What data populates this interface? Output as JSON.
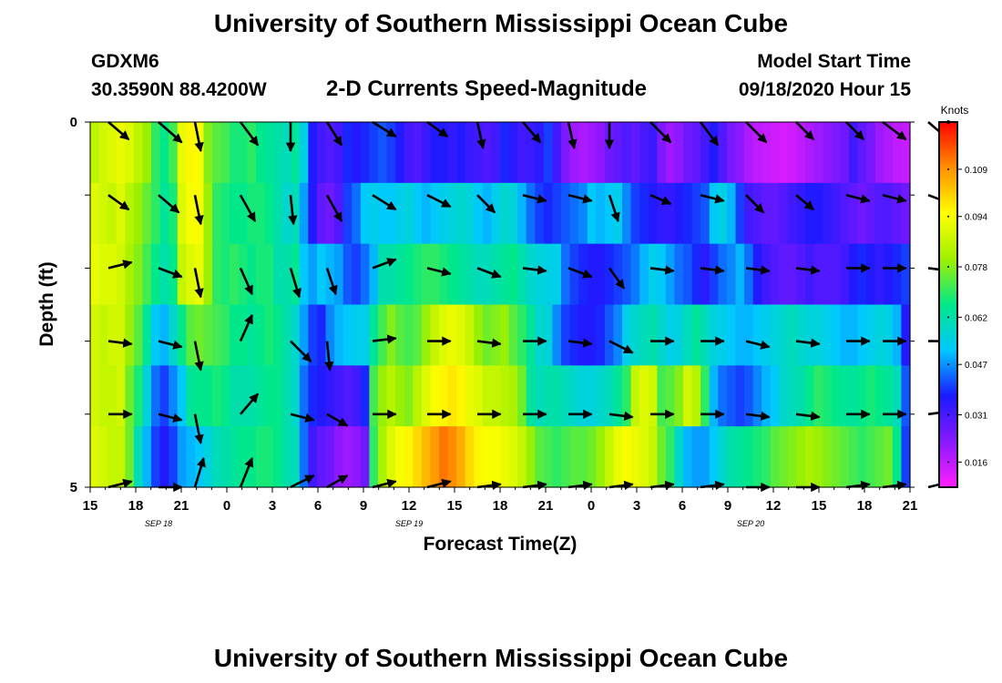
{
  "header": {
    "title": "University of Southern Mississippi Ocean Cube",
    "station_id": "GDXM6",
    "coordinates": "30.3590N 88.4200W",
    "subtitle": "2-D Currents Speed-Magnitude",
    "start_time_label": "Model Start Time",
    "start_time_value": "09/18/2020 Hour 15"
  },
  "footer": {
    "title": "University of Southern Mississippi Ocean Cube"
  },
  "chart_data": {
    "type": "heatmap",
    "title": "2-D Currents Speed-Magnitude",
    "xlabel": "Forecast Time(Z)",
    "ylabel": "Depth (ft)",
    "x_tick_labels": [
      "15",
      "18",
      "21",
      "0",
      "3",
      "6",
      "9",
      "12",
      "15",
      "18",
      "21",
      "0",
      "3",
      "6",
      "9",
      "12",
      "15",
      "18",
      "21"
    ],
    "date_labels": [
      {
        "text": "SEP 18",
        "at_tick": 1.5
      },
      {
        "text": "SEP 19",
        "at_tick": 7
      },
      {
        "text": "SEP 20",
        "at_tick": 14.5
      }
    ],
    "y_tick_labels": [
      {
        "text": "0",
        "level": 0
      },
      {
        "text": "5",
        "level": 5
      }
    ],
    "depth_levels": 6,
    "x_steps_per_tick": 3,
    "speed_units": "knots",
    "colorbar": {
      "label": "Knots",
      "ticks": [
        "0.109",
        "0.094",
        "0.078",
        "0.062",
        "0.047",
        "0.031",
        "0.016"
      ],
      "tick_values": [
        0.109,
        0.094,
        0.078,
        0.062,
        0.047,
        0.031,
        0.016
      ],
      "range": [
        0.008,
        0.124
      ],
      "colors": [
        "#ff1fff",
        "#8a18ff",
        "#1a1aff",
        "#00c8ff",
        "#00e88a",
        "#a0f000",
        "#ffff00",
        "#ff9000",
        "#ff0000"
      ]
    },
    "speed_rows": [
      [
        0.085,
        0.088,
        0.09,
        0.092,
        0.09,
        0.085,
        0.08,
        0.07,
        0.066,
        0.072,
        0.092,
        0.096,
        0.094,
        0.078,
        0.074,
        0.072,
        0.068,
        0.068,
        0.07,
        0.066,
        0.064,
        0.062,
        0.06,
        0.064,
        0.055,
        0.036,
        0.032,
        0.03,
        0.032,
        0.038,
        0.036,
        0.038,
        0.04,
        0.042,
        0.04,
        0.036,
        0.032,
        0.03,
        0.033,
        0.036,
        0.036,
        0.034,
        0.036,
        0.033,
        0.032,
        0.03,
        0.032,
        0.038,
        0.035,
        0.032,
        0.033,
        0.035,
        0.04,
        0.032,
        0.024,
        0.02,
        0.018,
        0.02,
        0.022,
        0.026,
        0.028,
        0.03,
        0.028,
        0.031,
        0.033,
        0.024,
        0.02,
        0.022,
        0.026,
        0.028,
        0.032,
        0.036,
        0.03,
        0.025,
        0.022,
        0.018,
        0.016,
        0.015,
        0.014,
        0.013,
        0.014,
        0.016,
        0.018,
        0.02,
        0.022,
        0.024,
        0.026,
        0.032,
        0.028,
        0.025,
        0.02,
        0.018,
        0.016,
        0.015
      ],
      [
        0.09,
        0.088,
        0.086,
        0.09,
        0.084,
        0.08,
        0.075,
        0.07,
        0.064,
        0.068,
        0.09,
        0.094,
        0.094,
        0.08,
        0.07,
        0.068,
        0.066,
        0.066,
        0.068,
        0.068,
        0.066,
        0.062,
        0.058,
        0.06,
        0.048,
        0.036,
        0.028,
        0.026,
        0.03,
        0.04,
        0.044,
        0.052,
        0.054,
        0.052,
        0.052,
        0.054,
        0.056,
        0.052,
        0.05,
        0.052,
        0.054,
        0.056,
        0.058,
        0.056,
        0.052,
        0.05,
        0.054,
        0.058,
        0.056,
        0.05,
        0.044,
        0.04,
        0.038,
        0.04,
        0.042,
        0.044,
        0.046,
        0.052,
        0.05,
        0.052,
        0.054,
        0.046,
        0.04,
        0.038,
        0.036,
        0.034,
        0.034,
        0.036,
        0.038,
        0.04,
        0.042,
        0.052,
        0.055,
        0.05,
        0.04,
        0.032,
        0.03,
        0.028,
        0.028,
        0.03,
        0.032,
        0.034,
        0.036,
        0.036,
        0.034,
        0.032,
        0.03,
        0.028,
        0.026,
        0.028,
        0.03,
        0.03,
        0.028,
        0.026
      ],
      [
        0.092,
        0.09,
        0.09,
        0.088,
        0.082,
        0.078,
        0.072,
        0.066,
        0.062,
        0.066,
        0.086,
        0.09,
        0.092,
        0.08,
        0.07,
        0.068,
        0.07,
        0.068,
        0.066,
        0.068,
        0.068,
        0.062,
        0.062,
        0.065,
        0.052,
        0.048,
        0.052,
        0.05,
        0.048,
        0.042,
        0.04,
        0.044,
        0.05,
        0.062,
        0.062,
        0.064,
        0.066,
        0.068,
        0.07,
        0.07,
        0.068,
        0.066,
        0.064,
        0.062,
        0.06,
        0.06,
        0.062,
        0.064,
        0.066,
        0.062,
        0.058,
        0.056,
        0.055,
        0.054,
        0.044,
        0.04,
        0.038,
        0.036,
        0.036,
        0.038,
        0.04,
        0.042,
        0.045,
        0.05,
        0.054,
        0.052,
        0.048,
        0.044,
        0.042,
        0.038,
        0.035,
        0.04,
        0.044,
        0.046,
        0.05,
        0.044,
        0.036,
        0.032,
        0.03,
        0.028,
        0.028,
        0.03,
        0.032,
        0.03,
        0.03,
        0.03,
        0.032,
        0.036,
        0.038,
        0.036,
        0.034,
        0.036,
        0.038,
        0.04
      ],
      [
        0.088,
        0.086,
        0.088,
        0.088,
        0.08,
        0.074,
        0.064,
        0.052,
        0.05,
        0.058,
        0.066,
        0.074,
        0.076,
        0.074,
        0.072,
        0.07,
        0.066,
        0.066,
        0.064,
        0.066,
        0.068,
        0.066,
        0.062,
        0.058,
        0.048,
        0.04,
        0.038,
        0.046,
        0.05,
        0.052,
        0.054,
        0.054,
        0.064,
        0.072,
        0.078,
        0.074,
        0.072,
        0.074,
        0.08,
        0.086,
        0.09,
        0.092,
        0.09,
        0.086,
        0.08,
        0.076,
        0.078,
        0.08,
        0.074,
        0.07,
        0.064,
        0.058,
        0.056,
        0.046,
        0.04,
        0.038,
        0.036,
        0.036,
        0.038,
        0.042,
        0.046,
        0.054,
        0.058,
        0.06,
        0.062,
        0.058,
        0.054,
        0.056,
        0.06,
        0.064,
        0.06,
        0.056,
        0.054,
        0.052,
        0.05,
        0.05,
        0.052,
        0.054,
        0.056,
        0.058,
        0.06,
        0.058,
        0.056,
        0.056,
        0.054,
        0.052,
        0.05,
        0.05,
        0.052,
        0.054,
        0.056,
        0.055,
        0.05,
        0.036
      ],
      [
        0.088,
        0.086,
        0.086,
        0.088,
        0.076,
        0.068,
        0.056,
        0.044,
        0.04,
        0.046,
        0.052,
        0.064,
        0.066,
        0.066,
        0.068,
        0.066,
        0.062,
        0.062,
        0.062,
        0.064,
        0.066,
        0.066,
        0.062,
        0.058,
        0.044,
        0.038,
        0.036,
        0.034,
        0.032,
        0.03,
        0.032,
        0.038,
        0.072,
        0.08,
        0.084,
        0.08,
        0.078,
        0.084,
        0.09,
        0.094,
        0.096,
        0.098,
        0.096,
        0.092,
        0.09,
        0.086,
        0.086,
        0.084,
        0.082,
        0.076,
        0.064,
        0.06,
        0.062,
        0.062,
        0.06,
        0.058,
        0.056,
        0.056,
        0.058,
        0.06,
        0.064,
        0.07,
        0.086,
        0.09,
        0.088,
        0.072,
        0.074,
        0.078,
        0.088,
        0.084,
        0.07,
        0.05,
        0.044,
        0.042,
        0.04,
        0.042,
        0.046,
        0.05,
        0.052,
        0.058,
        0.06,
        0.062,
        0.066,
        0.07,
        0.068,
        0.066,
        0.064,
        0.064,
        0.066,
        0.068,
        0.066,
        0.064,
        0.06,
        0.042
      ],
      [
        0.09,
        0.088,
        0.086,
        0.086,
        0.076,
        0.06,
        0.05,
        0.04,
        0.036,
        0.04,
        0.048,
        0.05,
        0.052,
        0.056,
        0.06,
        0.062,
        0.064,
        0.066,
        0.066,
        0.068,
        0.068,
        0.066,
        0.062,
        0.06,
        0.044,
        0.032,
        0.028,
        0.026,
        0.022,
        0.02,
        0.022,
        0.026,
        0.07,
        0.082,
        0.09,
        0.094,
        0.096,
        0.1,
        0.104,
        0.108,
        0.112,
        0.11,
        0.106,
        0.1,
        0.096,
        0.094,
        0.094,
        0.092,
        0.09,
        0.086,
        0.08,
        0.074,
        0.072,
        0.07,
        0.072,
        0.074,
        0.074,
        0.076,
        0.08,
        0.086,
        0.092,
        0.094,
        0.092,
        0.09,
        0.086,
        0.076,
        0.07,
        0.058,
        0.05,
        0.048,
        0.048,
        0.052,
        0.058,
        0.062,
        0.064,
        0.066,
        0.068,
        0.07,
        0.074,
        0.076,
        0.078,
        0.08,
        0.082,
        0.08,
        0.078,
        0.076,
        0.074,
        0.072,
        0.07,
        0.072,
        0.074,
        0.076,
        0.066,
        0.04
      ]
    ],
    "vector_columns": [
      0.4,
      1.5,
      2.3,
      3.3,
      4.4,
      5.2,
      6.2,
      7.4,
      8.5,
      9.5,
      10.5,
      11.4,
      12.3,
      13.4,
      14.4,
      15.5,
      16.6,
      17.4,
      18.4
    ],
    "vectors": [
      [
        [
          0.07,
          -0.06
        ],
        [
          0.08,
          -0.07
        ],
        [
          0.02,
          -0.1
        ],
        [
          0.06,
          -0.08
        ],
        [
          0.0,
          -0.1
        ],
        [
          0.05,
          -0.08
        ],
        [
          0.08,
          -0.05
        ],
        [
          0.07,
          -0.05
        ],
        [
          0.02,
          -0.09
        ],
        [
          0.06,
          -0.07
        ],
        [
          0.02,
          -0.09
        ],
        [
          0.0,
          -0.09
        ],
        [
          0.07,
          -0.07
        ],
        [
          0.06,
          -0.08
        ],
        [
          0.07,
          -0.07
        ],
        [
          0.06,
          -0.06
        ],
        [
          0.06,
          -0.06
        ],
        [
          0.08,
          -0.06
        ],
        [
          0.07,
          -0.06
        ]
      ],
      [
        [
          0.07,
          -0.05
        ],
        [
          0.07,
          -0.06
        ],
        [
          0.02,
          -0.1
        ],
        [
          0.05,
          -0.09
        ],
        [
          0.01,
          -0.1
        ],
        [
          0.05,
          -0.09
        ],
        [
          0.08,
          -0.05
        ],
        [
          0.08,
          -0.04
        ],
        [
          0.06,
          -0.06
        ],
        [
          0.08,
          -0.02
        ],
        [
          0.08,
          -0.02
        ],
        [
          0.03,
          -0.09
        ],
        [
          0.07,
          -0.03
        ],
        [
          0.08,
          -0.02
        ],
        [
          0.06,
          -0.06
        ],
        [
          0.06,
          -0.05
        ],
        [
          0.08,
          -0.02
        ],
        [
          0.08,
          -0.02
        ],
        [
          0.08,
          -0.03
        ]
      ],
      [
        [
          0.08,
          0.02
        ],
        [
          0.08,
          -0.03
        ],
        [
          0.02,
          -0.1
        ],
        [
          0.04,
          -0.09
        ],
        [
          0.03,
          -0.1
        ],
        [
          0.03,
          -0.09
        ],
        [
          0.08,
          0.03
        ],
        [
          0.08,
          -0.02
        ],
        [
          0.08,
          -0.03
        ],
        [
          0.08,
          -0.01
        ],
        [
          0.08,
          -0.03
        ],
        [
          0.05,
          -0.07
        ],
        [
          0.08,
          -0.01
        ],
        [
          0.08,
          -0.01
        ],
        [
          0.08,
          -0.01
        ],
        [
          0.08,
          -0.01
        ],
        [
          0.08,
          0.0
        ],
        [
          0.08,
          0.0
        ],
        [
          0.08,
          -0.01
        ]
      ],
      [
        [
          0.08,
          -0.01
        ],
        [
          0.08,
          -0.02
        ],
        [
          0.02,
          -0.1
        ],
        [
          0.04,
          0.09
        ],
        [
          0.07,
          -0.07
        ],
        [
          0.01,
          -0.1
        ],
        [
          0.08,
          0.01
        ],
        [
          0.08,
          0.0
        ],
        [
          0.08,
          -0.01
        ],
        [
          0.08,
          0.0
        ],
        [
          0.08,
          -0.01
        ],
        [
          0.08,
          -0.04
        ],
        [
          0.08,
          0.0
        ],
        [
          0.08,
          0.0
        ],
        [
          0.08,
          -0.02
        ],
        [
          0.08,
          -0.01
        ],
        [
          0.08,
          0.0
        ],
        [
          0.08,
          0.0
        ],
        [
          0.08,
          0.0
        ]
      ],
      [
        [
          0.08,
          0.0
        ],
        [
          0.08,
          -0.02
        ],
        [
          0.02,
          -0.1
        ],
        [
          0.06,
          0.07
        ],
        [
          0.08,
          -0.02
        ],
        [
          0.07,
          -0.04
        ],
        [
          0.08,
          0.0
        ],
        [
          0.08,
          0.0
        ],
        [
          0.08,
          0.0
        ],
        [
          0.08,
          0.0
        ],
        [
          0.08,
          0.0
        ],
        [
          0.08,
          -0.01
        ],
        [
          0.08,
          0.0
        ],
        [
          0.08,
          0.0
        ],
        [
          0.08,
          -0.01
        ],
        [
          0.08,
          -0.01
        ],
        [
          0.08,
          0.0
        ],
        [
          0.08,
          0.0
        ],
        [
          0.08,
          0.01
        ]
      ],
      [
        [
          0.08,
          0.02
        ],
        [
          0.08,
          0.0
        ],
        [
          0.03,
          0.1
        ],
        [
          0.04,
          0.1
        ],
        [
          0.08,
          0.04
        ],
        [
          0.07,
          0.04
        ],
        [
          0.08,
          0.02
        ],
        [
          0.08,
          0.02
        ],
        [
          0.08,
          0.01
        ],
        [
          0.08,
          0.01
        ],
        [
          0.08,
          0.01
        ],
        [
          0.08,
          0.01
        ],
        [
          0.08,
          0.01
        ],
        [
          0.08,
          0.01
        ],
        [
          0.08,
          0.0
        ],
        [
          0.08,
          0.0
        ],
        [
          0.08,
          0.01
        ],
        [
          0.08,
          0.01
        ],
        [
          0.08,
          0.02
        ]
      ]
    ],
    "grid": false,
    "legend_position": "right"
  }
}
